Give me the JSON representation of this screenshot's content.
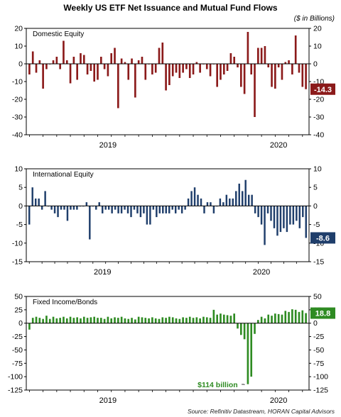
{
  "title": "Weekly US ETF Net Issuance and Mutual Fund Flows",
  "units": "($ in Billions)",
  "source": "Source: Refinitiv Datastream, HORAN Capital Advisors",
  "chart_data": [
    {
      "type": "bar",
      "title": "Domestic Equity",
      "color": "#8b1a1a",
      "ylim": [
        -40,
        20
      ],
      "yticks": [
        -40,
        -30,
        -20,
        -10,
        0,
        10,
        20
      ],
      "xticks": [
        {
          "label": "2019",
          "at": 23
        },
        {
          "label": "2020",
          "at": 73
        }
      ],
      "last_value_label": "-14.3",
      "values": [
        -6,
        7,
        -5,
        2,
        -14,
        -3,
        0,
        2,
        4,
        -3,
        13,
        2,
        -11,
        4,
        -9,
        6,
        5,
        -6,
        -4,
        -10,
        -9,
        4,
        -3,
        -7,
        6,
        9,
        -25,
        3,
        1,
        -9,
        3,
        -19,
        2,
        4,
        -9,
        0,
        -6,
        -5,
        9,
        12,
        -15,
        -12,
        -7,
        -5,
        -8,
        -5,
        -3,
        -8,
        -6,
        1,
        -5,
        0,
        -3,
        -7,
        0,
        -13,
        -9,
        -6,
        -4,
        6,
        4,
        -2,
        -13,
        -17,
        18,
        -6,
        -30,
        9,
        9,
        10,
        -2,
        -13,
        -14,
        -2,
        -9,
        1,
        2,
        -6,
        16,
        -5,
        -13,
        -14.3
      ]
    },
    {
      "type": "bar",
      "title": "International Equity",
      "color": "#1f3e6b",
      "ylim": [
        -15,
        10
      ],
      "yticks": [
        -15,
        -10,
        -5,
        0,
        5,
        10
      ],
      "xticks": [
        {
          "label": "2019",
          "at": 23
        },
        {
          "label": "2020",
          "at": 73
        }
      ],
      "last_value_label": "-8.6",
      "values": [
        -5,
        5,
        2,
        2,
        -1,
        4,
        0,
        -1,
        -2,
        -3,
        -1,
        -1,
        -4,
        -1,
        -1,
        -1,
        0,
        0,
        1,
        -9,
        0,
        -1,
        1,
        -2,
        -1,
        -1,
        -2,
        -1,
        -2,
        -2,
        -1,
        -2,
        -3,
        -1,
        -2,
        -3,
        -2,
        -5,
        -5,
        -1,
        -3,
        -2,
        -2,
        -2,
        -2,
        -1,
        -2,
        -1,
        -2,
        -1,
        2,
        4,
        5,
        3,
        2,
        -2,
        1,
        1,
        -2,
        0,
        2,
        1,
        3,
        2,
        2,
        4,
        6,
        4,
        7,
        3,
        3,
        -2,
        -3,
        -5,
        -10.5,
        -2,
        -4,
        -6,
        -8,
        -7,
        -6,
        -7,
        -5,
        -5,
        -4,
        -6,
        -3,
        -8.6
      ]
    },
    {
      "type": "bar",
      "title": "Fixed Income/Bonds",
      "color": "#2e8b22",
      "ylim": [
        -125,
        50
      ],
      "yticks": [
        -125,
        -100,
        -75,
        -50,
        -25,
        0,
        25,
        50
      ],
      "xticks": [
        {
          "label": "2019",
          "at": 23
        },
        {
          "label": "2020",
          "at": 73
        }
      ],
      "last_value_label": "18.8",
      "annotation": "$114 billion",
      "annotation_index": 63,
      "values": [
        -12,
        10,
        12,
        10,
        8,
        14,
        8,
        12,
        9,
        10,
        12,
        9,
        12,
        10,
        11,
        9,
        12,
        10,
        11,
        12,
        10,
        10,
        8,
        12,
        9,
        11,
        10,
        12,
        9,
        8,
        10,
        7,
        12,
        11,
        10,
        9,
        11,
        9,
        8,
        11,
        10,
        12,
        11,
        9,
        8,
        11,
        10,
        12,
        10,
        11,
        9,
        12,
        11,
        10,
        25,
        16,
        18,
        16,
        15,
        14,
        18,
        -10,
        -22,
        -30,
        -114,
        -100,
        -20,
        6,
        12,
        9,
        16,
        14,
        18,
        17,
        16,
        23,
        21,
        26,
        25,
        21,
        24,
        18.8
      ]
    }
  ]
}
